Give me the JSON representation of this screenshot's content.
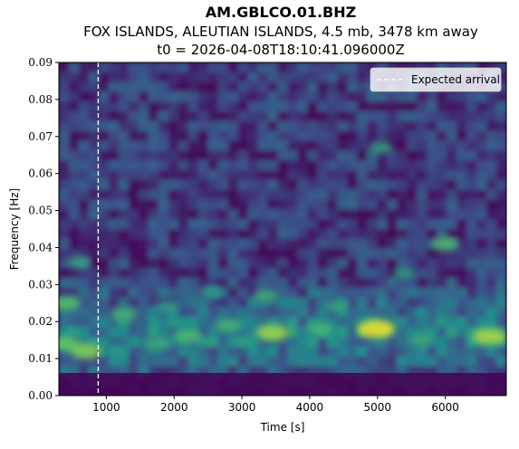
{
  "chart_data": {
    "type": "heatmap",
    "title": "AM.GBLCO.01.BHZ",
    "subtitle_lines": [
      "FOX ISLANDS, ALEUTIAN ISLANDS, 4.5 mb, 3478 km away",
      "t0 = 2026-04-08T18:10:41.096000Z"
    ],
    "xlabel": "Time [s]",
    "ylabel": "Frequency [Hz]",
    "xlim": [
      300,
      6900
    ],
    "ylim": [
      0,
      0.09
    ],
    "x_ticks": [
      1000,
      2000,
      3000,
      4000,
      5000,
      6000
    ],
    "x_tick_labels": [
      "1000",
      "2000",
      "3000",
      "4000",
      "5000",
      "6000"
    ],
    "y_ticks": [
      0,
      0.01,
      0.02,
      0.03,
      0.04,
      0.05,
      0.06,
      0.07,
      0.08,
      0.09
    ],
    "y_tick_labels": [
      "0.00",
      "0.01",
      "0.02",
      "0.03",
      "0.04",
      "0.05",
      "0.06",
      "0.07",
      "0.08",
      "0.09"
    ],
    "colormap": "viridis",
    "legend": {
      "location": "top-right",
      "entries": [
        "Expected arrival"
      ]
    },
    "expected_arrival_time": 880,
    "hotspots": [
      {
        "x": 4980,
        "y": 0.018,
        "level": 0.95
      },
      {
        "x": 6650,
        "y": 0.016,
        "level": 0.8
      },
      {
        "x": 3450,
        "y": 0.017,
        "level": 0.75
      },
      {
        "x": 700,
        "y": 0.012,
        "level": 0.7
      },
      {
        "x": 400,
        "y": 0.014,
        "level": 0.6
      },
      {
        "x": 400,
        "y": 0.025,
        "level": 0.55
      },
      {
        "x": 6000,
        "y": 0.041,
        "level": 0.5
      },
      {
        "x": 2200,
        "y": 0.016,
        "level": 0.5
      },
      {
        "x": 1250,
        "y": 0.022,
        "level": 0.45
      },
      {
        "x": 4150,
        "y": 0.018,
        "level": 0.45
      },
      {
        "x": 2800,
        "y": 0.019,
        "level": 0.45
      },
      {
        "x": 5650,
        "y": 0.015,
        "level": 0.4
      },
      {
        "x": 1750,
        "y": 0.014,
        "level": 0.4
      },
      {
        "x": 3350,
        "y": 0.027,
        "level": 0.4
      },
      {
        "x": 4400,
        "y": 0.024,
        "level": 0.35
      },
      {
        "x": 5050,
        "y": 0.067,
        "level": 0.35
      },
      {
        "x": 600,
        "y": 0.036,
        "level": 0.35
      },
      {
        "x": 2550,
        "y": 0.028,
        "level": 0.3
      },
      {
        "x": 5400,
        "y": 0.033,
        "level": 0.3
      },
      {
        "x": 1900,
        "y": 0.024,
        "level": 0.3
      }
    ]
  }
}
